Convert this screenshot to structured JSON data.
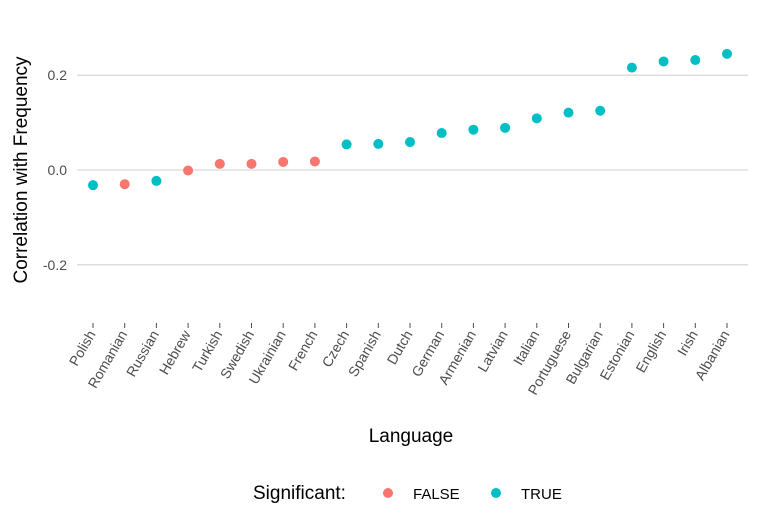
{
  "chart_data": {
    "type": "scatter",
    "xlabel": "Language",
    "ylabel": "Correlation with Frequency",
    "ylim": [
      -0.33,
      0.275
    ],
    "yticks": [
      -0.2,
      0.0,
      0.2
    ],
    "ytick_labels": [
      "-0.2",
      "0.0",
      "0.2"
    ],
    "grid": "horizontal major",
    "categories": [
      "Polish",
      "Romanian",
      "Russian",
      "Hebrew",
      "Turkish",
      "Swedish",
      "Ukrainian",
      "French",
      "Czech",
      "Spanish",
      "Dutch",
      "German",
      "Armenian",
      "Latvian",
      "Italian",
      "Portuguese",
      "Bulgarian",
      "Estonian",
      "English",
      "Irish",
      "Albanian"
    ],
    "values": [
      -0.032,
      -0.03,
      -0.023,
      -0.001,
      0.013,
      0.013,
      0.017,
      0.018,
      0.054,
      0.055,
      0.059,
      0.078,
      0.085,
      0.089,
      0.109,
      0.121,
      0.125,
      0.216,
      0.229,
      0.232,
      0.245
    ],
    "significant": [
      "TRUE",
      "FALSE",
      "TRUE",
      "FALSE",
      "FALSE",
      "FALSE",
      "FALSE",
      "FALSE",
      "TRUE",
      "TRUE",
      "TRUE",
      "TRUE",
      "TRUE",
      "TRUE",
      "TRUE",
      "TRUE",
      "TRUE",
      "TRUE",
      "TRUE",
      "TRUE",
      "TRUE"
    ],
    "legend": {
      "title": "Significant:",
      "placement": "bottom",
      "entries": [
        {
          "label": "FALSE",
          "color": "#F8766D"
        },
        {
          "label": "TRUE",
          "color": "#00BFC4"
        }
      ]
    },
    "colors": {
      "FALSE": "#F8766D",
      "TRUE": "#00BFC4",
      "grid": "#d9d9d9"
    }
  }
}
